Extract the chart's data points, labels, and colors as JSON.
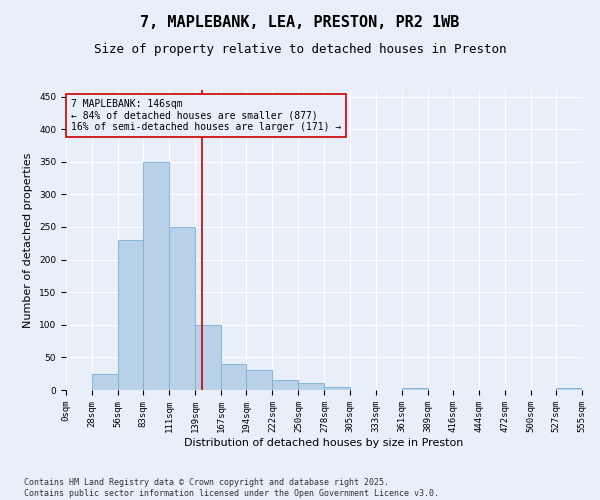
{
  "title": "7, MAPLEBANK, LEA, PRESTON, PR2 1WB",
  "subtitle": "Size of property relative to detached houses in Preston",
  "xlabel": "Distribution of detached houses by size in Preston",
  "ylabel": "Number of detached properties",
  "bar_color": "#b8d0e8",
  "bar_edge_color": "#7aafd4",
  "bin_edges": [
    0,
    28,
    56,
    83,
    111,
    139,
    167,
    194,
    222,
    250,
    278,
    305,
    333,
    361,
    389,
    416,
    444,
    472,
    500,
    527,
    555
  ],
  "bar_heights": [
    0,
    25,
    230,
    350,
    250,
    100,
    40,
    30,
    15,
    10,
    5,
    0,
    0,
    3,
    0,
    0,
    0,
    0,
    0,
    3
  ],
  "tick_labels": [
    "0sqm",
    "28sqm",
    "56sqm",
    "83sqm",
    "111sqm",
    "139sqm",
    "167sqm",
    "194sqm",
    "222sqm",
    "250sqm",
    "278sqm",
    "305sqm",
    "333sqm",
    "361sqm",
    "389sqm",
    "416sqm",
    "444sqm",
    "472sqm",
    "500sqm",
    "527sqm",
    "555sqm"
  ],
  "property_size": 146,
  "annotation_text": "7 MAPLEBANK: 146sqm\n← 84% of detached houses are smaller (877)\n16% of semi-detached houses are larger (171) →",
  "vline_color": "#cc0000",
  "box_edge_color": "#cc0000",
  "ylim": [
    0,
    460
  ],
  "yticks": [
    0,
    50,
    100,
    150,
    200,
    250,
    300,
    350,
    400,
    450
  ],
  "bg_color": "#e8eff8",
  "footer_text": "Contains HM Land Registry data © Crown copyright and database right 2025.\nContains public sector information licensed under the Open Government Licence v3.0.",
  "grid_color": "#ffffff",
  "title_fontsize": 11,
  "subtitle_fontsize": 9,
  "tick_fontsize": 6.5,
  "ylabel_fontsize": 8,
  "xlabel_fontsize": 8,
  "annotation_fontsize": 7,
  "footer_fontsize": 6
}
